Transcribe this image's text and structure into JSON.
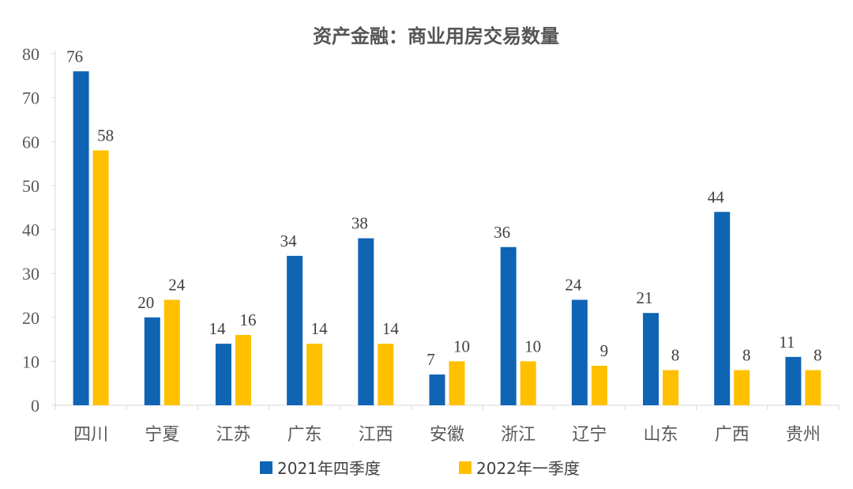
{
  "chart_data": {
    "type": "bar",
    "title": "资产金融：商业用房交易数量",
    "categories": [
      "四川",
      "宁夏",
      "江苏",
      "广东",
      "江西",
      "安徽",
      "浙江",
      "辽宁",
      "山东",
      "广西",
      "贵州"
    ],
    "series": [
      {
        "name": "2021年四季度",
        "color": "#0f64b4",
        "values": [
          76,
          20,
          14,
          34,
          38,
          7,
          36,
          24,
          21,
          44,
          11
        ]
      },
      {
        "name": "2022年一季度",
        "color": "#ffc000",
        "values": [
          58,
          24,
          16,
          14,
          14,
          10,
          10,
          9,
          8,
          8,
          8
        ]
      }
    ],
    "ylim": [
      0,
      80
    ],
    "yticks": [
      0,
      10,
      20,
      30,
      40,
      50,
      60,
      70,
      80
    ],
    "xlabel": "",
    "ylabel": "",
    "grid": false,
    "legend_position": "bottom"
  }
}
